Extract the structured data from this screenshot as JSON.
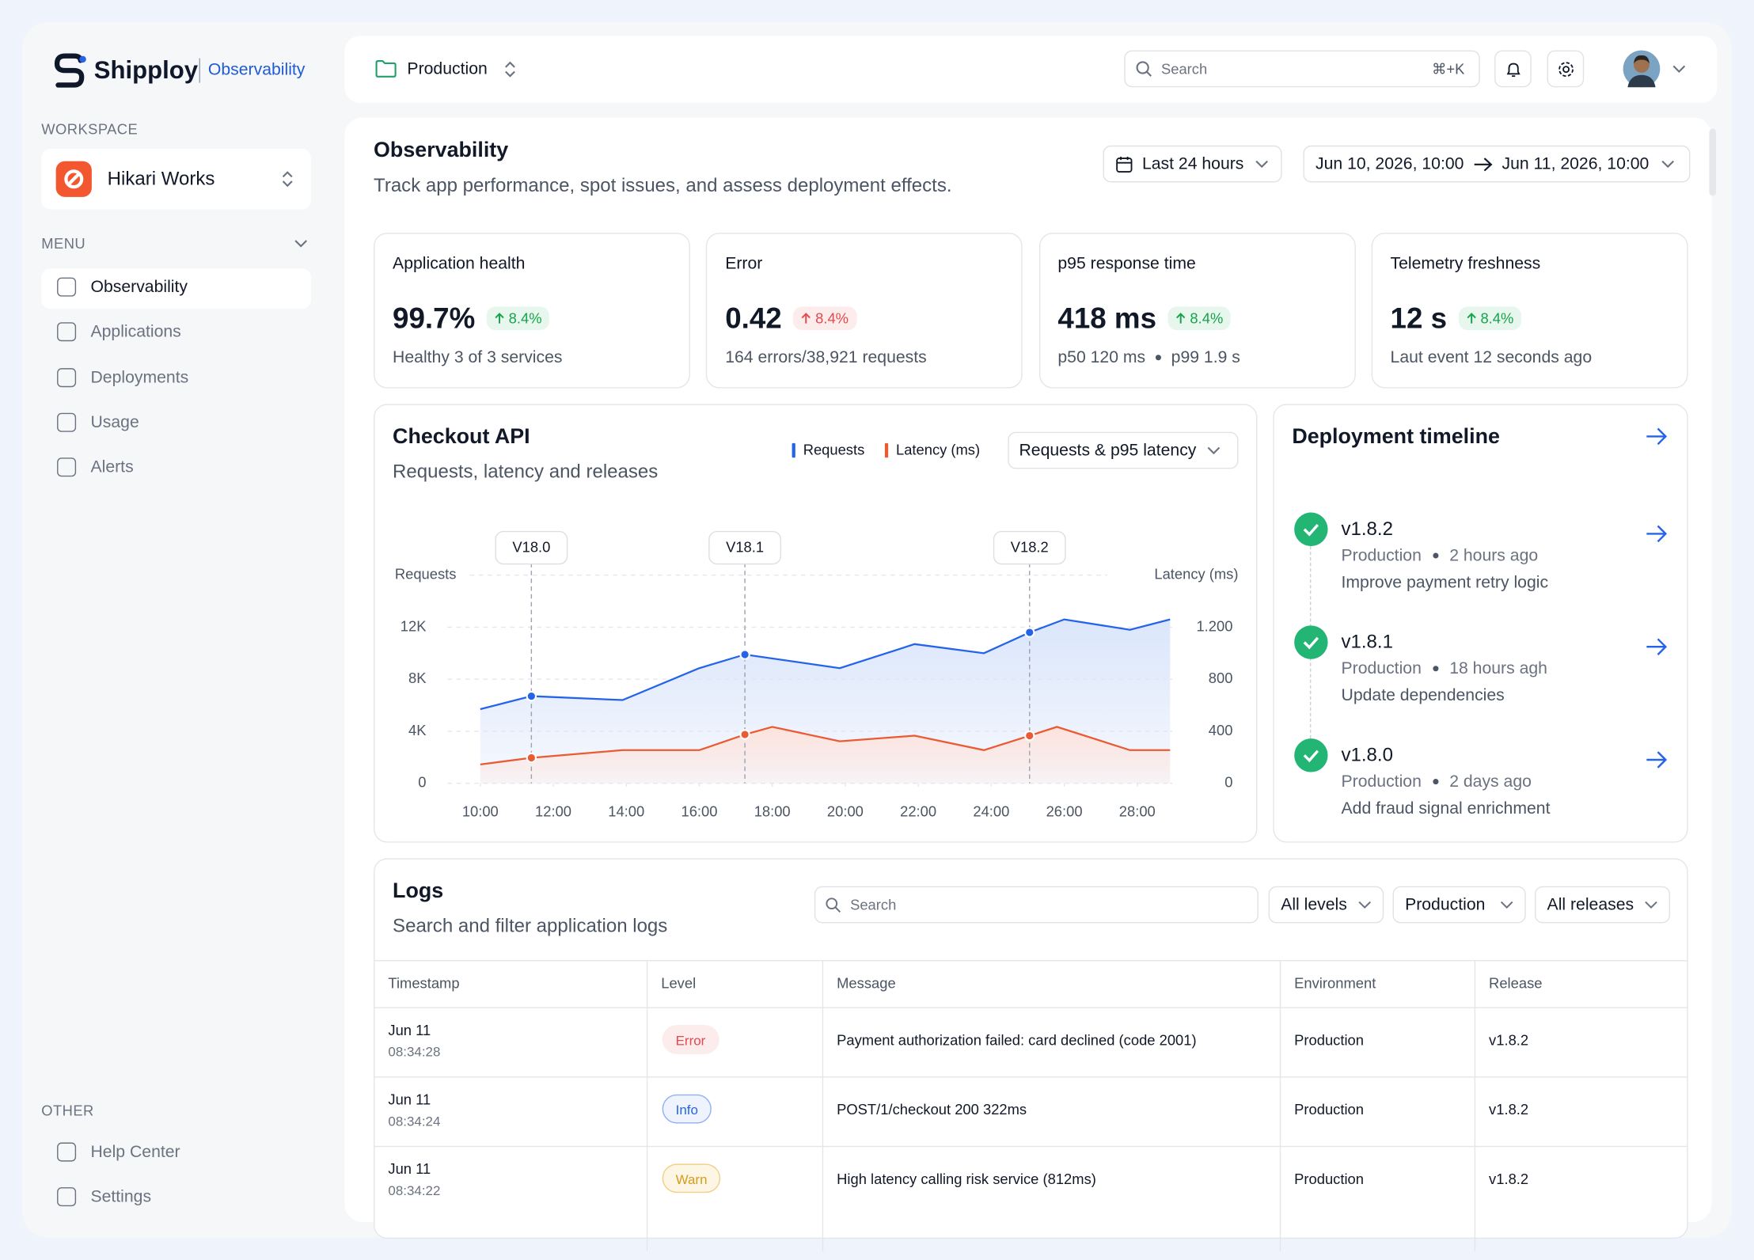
{
  "brand": {
    "name": "Shipploy",
    "product": "Observability"
  },
  "sidebar": {
    "workspace_label": "WORKSPACE",
    "workspace": "Hikari Works",
    "menu_label": "MENU",
    "menu": [
      "Observability",
      "Applications",
      "Deployments",
      "Usage",
      "Alerts"
    ],
    "other_label": "OTHER",
    "other": [
      "Help Center",
      "Settings"
    ]
  },
  "topbar": {
    "environment": "Production",
    "search_placeholder": "Search",
    "shortcut": "⌘+K"
  },
  "page": {
    "title": "Observability",
    "subtitle": "Track app performance, spot issues, and assess deployment effects.",
    "range": "Last 24 hours",
    "from": "Jun 10, 2026, 10:00",
    "to": "Jun 11, 2026, 10:00"
  },
  "kpis": [
    {
      "label": "Application health",
      "value": "99.7%",
      "change": "8.4%",
      "color": "#16a34a",
      "bg": "#e8f7ee",
      "note": [
        "Healthy 3 of 3 services"
      ]
    },
    {
      "label": "Error",
      "value": "0.42",
      "change": "8.4%",
      "color": "#e5484d",
      "bg": "#fdecec",
      "note": [
        "164 errors/38,921 requests"
      ]
    },
    {
      "label": "p95 response time",
      "value": "418 ms",
      "change": "8.4%",
      "color": "#16a34a",
      "bg": "#e8f7ee",
      "note": [
        "p50 120 ms",
        "p99 1.9 s"
      ]
    },
    {
      "label": "Telemetry freshness",
      "value": "12 s",
      "change": "8.4%",
      "color": "#16a34a",
      "bg": "#e8f7ee",
      "note": [
        "Laut event 12 seconds ago"
      ]
    }
  ],
  "chart_data": {
    "type": "line",
    "title": "Checkout API",
    "subtitle": "Requests, latency and releases",
    "selector": "Requests & p95 latency",
    "ylabel": "Requests",
    "y2label": "Latency (ms)",
    "grid": true,
    "xlim": [
      9.1,
      28.9
    ],
    "xticks": [
      {
        "value": 10,
        "label": "10:00"
      },
      {
        "value": 12,
        "label": "12:00"
      },
      {
        "value": 14,
        "label": "14:00"
      },
      {
        "value": 16,
        "label": "16:00"
      },
      {
        "value": 18,
        "label": "18:00"
      },
      {
        "value": 20,
        "label": "20:00"
      },
      {
        "value": 22,
        "label": "22:00"
      },
      {
        "value": 24,
        "label": "24:00"
      },
      {
        "value": 26,
        "label": "26:00"
      },
      {
        "value": 28,
        "label": "28:00"
      }
    ],
    "ylim": [
      0,
      16000
    ],
    "yticks": [
      0,
      {
        "value": 4000,
        "label": "4K"
      },
      {
        "value": 8000,
        "label": "8K"
      },
      {
        "value": 12000,
        "label": "12K"
      }
    ],
    "y2lim": [
      0,
      1600
    ],
    "y2ticks": [
      0,
      400,
      800,
      {
        "value": 1200,
        "label": "1.200"
      }
    ],
    "series": [
      {
        "name": "Requests",
        "color": "#2563eb",
        "fill": "#dbe6fb",
        "x": [
          10,
          11.4,
          13.9,
          16,
          17.25,
          19.85,
          21.9,
          23.8,
          25.05,
          26,
          27.8,
          28.9
        ],
        "values": [
          5700,
          6700,
          6400,
          8850,
          9900,
          8850,
          10700,
          10000,
          11600,
          12600,
          11800,
          12600
        ]
      },
      {
        "name": "Latency (ms)",
        "color": "#ea5a33",
        "fill": "#fde3dc",
        "axis": "y2",
        "x": [
          10,
          11.4,
          13.9,
          16,
          17.25,
          18,
          19.85,
          21.9,
          23.8,
          25.05,
          25.8,
          27.8,
          28.9
        ],
        "values": [
          145,
          196,
          255,
          255,
          375,
          434,
          323,
          366,
          255,
          366,
          434,
          255,
          255
        ]
      }
    ],
    "releases": [
      {
        "label": "V18.0",
        "x": 11.4
      },
      {
        "label": "V18.1",
        "x": 17.25
      },
      {
        "label": "V18.2",
        "x": 25.05
      }
    ]
  },
  "deployments": {
    "title": "Deployment timeline",
    "items": [
      {
        "version": "v1.8.2",
        "environment": "Production",
        "time": "2 hours ago",
        "message": "Improve payment retry logic"
      },
      {
        "version": "v1.8.1",
        "environment": "Production",
        "time": "18 hours agh",
        "message": "Update dependencies"
      },
      {
        "version": "v1.8.0",
        "environment": "Production",
        "time": "2 days ago",
        "message": "Add fraud signal enrichment"
      }
    ]
  },
  "logs": {
    "title": "Logs",
    "subtitle": "Search and filter application logs",
    "search_placeholder": "Search",
    "filters": [
      "All levels",
      "Production",
      "All releases"
    ],
    "columns": [
      "Timestamp",
      "Level",
      "Message",
      "Environment",
      "Release"
    ],
    "rows": [
      {
        "date": "Jun 11",
        "time": "08:34:28",
        "level": "Error",
        "level_color": "#e5484d",
        "level_bg": "#fdecec",
        "level_border": "#fdecec",
        "message": "Payment authorization failed: card declined (code 2001)",
        "environment": "Production",
        "release": "v1.8.2"
      },
      {
        "date": "Jun 11",
        "time": "08:34:24",
        "level": "Info",
        "level_color": "#2563eb",
        "level_bg": "#eef3fe",
        "level_border": "#8fb0f4",
        "message": "POST/1/checkout 200 322ms",
        "environment": "Production",
        "release": "v1.8.2"
      },
      {
        "date": "Jun 11",
        "time": "08:34:22",
        "level": "Warn",
        "level_color": "#d99a1b",
        "level_bg": "#fdf6e4",
        "level_border": "#f3cf86",
        "message": "High latency calling risk service (812ms)",
        "environment": "Production",
        "release": "v1.8.2"
      }
    ]
  }
}
